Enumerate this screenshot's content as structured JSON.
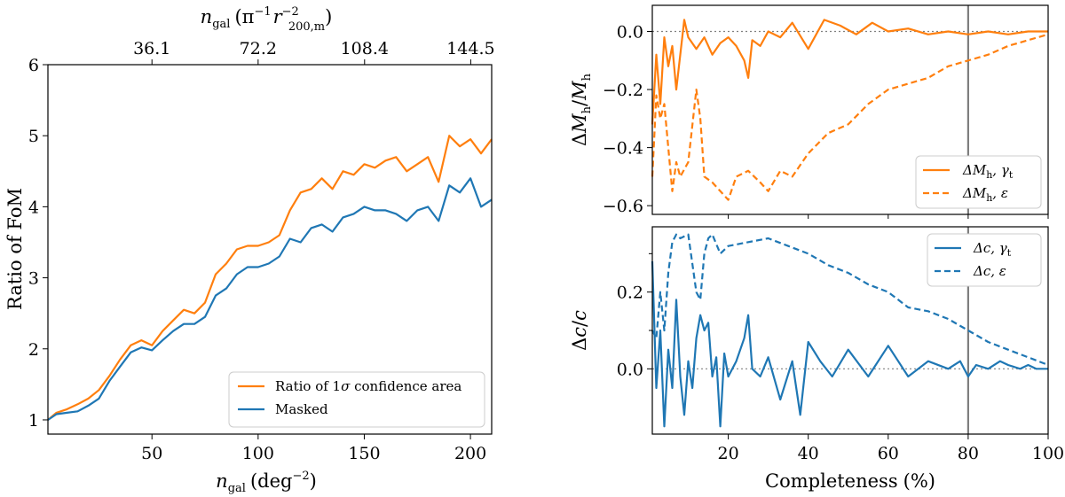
{
  "colors": {
    "orange": "#ff7f0e",
    "blue": "#1f77b4",
    "zero_line": "#808080",
    "vline": "#7f7f7f"
  },
  "chart_data": [
    {
      "type": "line",
      "xlabel": "n_gal (deg^-2)",
      "xlabel_main": "n",
      "xlabel_sub": "gal",
      "xlabel_units": "(deg",
      "xlabel_exp": "−2",
      "xlabel_close": ")",
      "ylabel": "Ratio of FoM",
      "xlim": [
        1,
        210
      ],
      "ylim": [
        0.8,
        6
      ],
      "xticks": [
        50,
        100,
        150,
        200
      ],
      "xtick_labels": [
        "50",
        "100",
        "150",
        "200"
      ],
      "yticks": [
        1,
        2,
        3,
        4,
        5,
        6
      ],
      "ytick_labels": [
        "1",
        "2",
        "3",
        "4",
        "5",
        "6"
      ],
      "top_axis": {
        "label": "n_gal (π^-1 r_200,m^-2)",
        "label_main": "n",
        "label_sub": "gal",
        "label_paren": "(π",
        "label_pi_exp": "−1",
        "label_r": "r",
        "label_r_exp": "−2",
        "label_r_sub": "200,m",
        "label_close": ")",
        "ticks": [
          36.1,
          72.2,
          108.4,
          144.5
        ],
        "tick_labels": [
          "36.1",
          "72.2",
          "108.4",
          "144.5"
        ]
      },
      "legend_position": "bottom-right",
      "series": [
        {
          "name": "Ratio of 1σ confidence area",
          "legend_label": "Ratio of 1σ confidence area",
          "legend_prefix": "Ratio of 1",
          "legend_sigma": "σ",
          "legend_suffix": " confidence area",
          "color": "orange",
          "x": [
            1,
            5,
            10,
            15,
            20,
            25,
            30,
            35,
            40,
            45,
            50,
            55,
            60,
            65,
            70,
            75,
            80,
            85,
            90,
            95,
            100,
            105,
            110,
            115,
            120,
            125,
            130,
            135,
            140,
            145,
            150,
            155,
            160,
            165,
            170,
            175,
            180,
            185,
            190,
            195,
            200,
            205,
            210
          ],
          "y": [
            1.0,
            1.1,
            1.15,
            1.22,
            1.3,
            1.42,
            1.62,
            1.85,
            2.05,
            2.12,
            2.05,
            2.25,
            2.4,
            2.55,
            2.5,
            2.65,
            3.05,
            3.2,
            3.4,
            3.45,
            3.45,
            3.5,
            3.6,
            3.95,
            4.2,
            4.25,
            4.4,
            4.25,
            4.5,
            4.45,
            4.6,
            4.55,
            4.65,
            4.7,
            4.5,
            4.6,
            4.7,
            4.35,
            5.0,
            4.85,
            4.95,
            4.75,
            4.95
          ]
        },
        {
          "name": "Masked",
          "legend_label": "Masked",
          "color": "blue",
          "x": [
            1,
            5,
            10,
            15,
            20,
            25,
            30,
            35,
            40,
            45,
            50,
            55,
            60,
            65,
            70,
            75,
            80,
            85,
            90,
            95,
            100,
            105,
            110,
            115,
            120,
            125,
            130,
            135,
            140,
            145,
            150,
            155,
            160,
            165,
            170,
            175,
            180,
            185,
            190,
            195,
            200,
            205,
            210
          ],
          "y": [
            1.0,
            1.08,
            1.1,
            1.12,
            1.2,
            1.3,
            1.55,
            1.75,
            1.95,
            2.02,
            1.98,
            2.12,
            2.25,
            2.35,
            2.35,
            2.45,
            2.75,
            2.85,
            3.05,
            3.15,
            3.15,
            3.2,
            3.3,
            3.55,
            3.5,
            3.7,
            3.75,
            3.65,
            3.85,
            3.9,
            4.0,
            3.95,
            3.95,
            3.9,
            3.8,
            3.95,
            4.0,
            3.8,
            4.3,
            4.2,
            4.4,
            4.0,
            4.1
          ]
        }
      ]
    },
    {
      "type": "line",
      "ylabel": "ΔM_h/M_h",
      "ylabel_parts": {
        "delta": "Δ",
        "m1": "M",
        "s1": "h",
        "slash": "/",
        "m2": "M",
        "s2": "h"
      },
      "xlim": [
        1,
        100
      ],
      "ylim": [
        -0.63,
        0.09
      ],
      "yticks": [
        0.0,
        -0.2,
        -0.4,
        -0.6
      ],
      "ytick_labels": [
        "0.0",
        "−0.2",
        "−0.4",
        "−0.6"
      ],
      "reference_line": 0.0,
      "vertical_line": 80,
      "legend_position": "bottom-right",
      "series": [
        {
          "name": "ΔM_h, γ_t",
          "legend_parts": {
            "main": "ΔM",
            "sub1": "h",
            "mid": ", γ",
            "sub2": "t"
          },
          "color": "orange",
          "style": "solid",
          "x": [
            1,
            2,
            3,
            4,
            5,
            6,
            7,
            8,
            9,
            10,
            12,
            14,
            16,
            18,
            20,
            22,
            24,
            25,
            26,
            28,
            30,
            33,
            36,
            40,
            44,
            48,
            52,
            56,
            60,
            65,
            70,
            75,
            80,
            85,
            90,
            95,
            100
          ],
          "y": [
            -0.32,
            -0.08,
            -0.25,
            -0.02,
            -0.12,
            -0.05,
            -0.2,
            -0.08,
            0.04,
            -0.02,
            -0.06,
            -0.02,
            -0.08,
            -0.04,
            -0.02,
            -0.05,
            -0.1,
            -0.16,
            -0.03,
            -0.05,
            0.0,
            -0.02,
            0.03,
            -0.06,
            0.04,
            0.02,
            -0.01,
            0.03,
            0.0,
            0.01,
            -0.01,
            0.0,
            -0.01,
            0.0,
            -0.01,
            0.0,
            0.0
          ]
        },
        {
          "name": "ΔM_h, ε",
          "legend_parts": {
            "main": "ΔM",
            "sub1": "h",
            "mid": ", ε"
          },
          "color": "orange",
          "style": "dashed",
          "x": [
            1,
            2,
            3,
            4,
            5,
            6,
            7,
            8,
            10,
            12,
            13,
            14,
            16,
            18,
            20,
            22,
            25,
            28,
            30,
            33,
            36,
            40,
            45,
            50,
            55,
            60,
            65,
            70,
            75,
            80,
            85,
            90,
            95,
            100
          ],
          "y": [
            -0.5,
            -0.22,
            -0.3,
            -0.25,
            -0.4,
            -0.55,
            -0.45,
            -0.5,
            -0.45,
            -0.2,
            -0.3,
            -0.5,
            -0.52,
            -0.55,
            -0.58,
            -0.5,
            -0.48,
            -0.52,
            -0.55,
            -0.48,
            -0.5,
            -0.42,
            -0.35,
            -0.32,
            -0.25,
            -0.2,
            -0.18,
            -0.16,
            -0.12,
            -0.1,
            -0.08,
            -0.05,
            -0.03,
            -0.01
          ]
        }
      ]
    },
    {
      "type": "line",
      "xlabel": "Completeness (%)",
      "xlabel_text": "Completeness",
      "xlabel_units": "(%)",
      "ylabel": "Δc/c",
      "ylabel_parts": {
        "delta": "Δ",
        "c1": "c",
        "slash": "/",
        "c2": "c"
      },
      "xlim": [
        1,
        100
      ],
      "ylim": [
        -0.17,
        0.37
      ],
      "xticks": [
        20,
        40,
        60,
        80,
        100
      ],
      "xtick_labels": [
        "20",
        "40",
        "60",
        "80",
        "100"
      ],
      "yticks": [
        0.0,
        0.1,
        0.2,
        0.3
      ],
      "ytick_labels": [
        "0.0",
        "",
        "0.2",
        ""
      ],
      "reference_line": 0.0,
      "vertical_line": 80,
      "legend_position": "top-right",
      "series": [
        {
          "name": "Δc, γ_t",
          "legend_parts": {
            "main": "Δc",
            "mid": ", γ",
            "sub": "t"
          },
          "color": "blue",
          "style": "solid",
          "x": [
            1,
            2,
            3,
            4,
            5,
            6,
            7,
            8,
            9,
            10,
            11,
            12,
            13,
            14,
            15,
            16,
            17,
            18,
            19,
            20,
            22,
            24,
            25,
            26,
            28,
            30,
            33,
            36,
            38,
            40,
            43,
            46,
            50,
            55,
            60,
            65,
            70,
            75,
            78,
            80,
            82,
            85,
            88,
            90,
            93,
            95,
            97,
            100
          ],
          "y": [
            0.28,
            -0.05,
            0.1,
            -0.15,
            0.05,
            -0.05,
            0.18,
            -0.02,
            -0.12,
            0.02,
            -0.05,
            0.08,
            0.14,
            0.1,
            0.12,
            -0.02,
            0.03,
            -0.15,
            0.04,
            -0.02,
            0.02,
            0.08,
            0.14,
            0.0,
            -0.02,
            0.03,
            -0.08,
            0.02,
            -0.12,
            0.07,
            0.02,
            -0.02,
            0.05,
            -0.02,
            0.06,
            -0.02,
            0.02,
            0.0,
            0.02,
            -0.02,
            0.01,
            0.0,
            0.02,
            0.01,
            0.0,
            0.01,
            0.0,
            0.0
          ]
        },
        {
          "name": "Δc, ε",
          "legend_parts": {
            "main": "Δc",
            "mid": ", ε"
          },
          "color": "blue",
          "style": "dashed",
          "x": [
            1,
            2,
            3,
            4,
            5,
            6,
            7,
            8,
            10,
            12,
            13,
            14,
            15,
            16,
            18,
            20,
            25,
            30,
            35,
            40,
            45,
            50,
            55,
            60,
            65,
            70,
            75,
            80,
            85,
            90,
            95,
            100
          ],
          "y": [
            0.1,
            0.08,
            0.2,
            0.1,
            0.25,
            0.33,
            0.35,
            0.34,
            0.35,
            0.2,
            0.18,
            0.3,
            0.34,
            0.35,
            0.3,
            0.32,
            0.33,
            0.34,
            0.32,
            0.3,
            0.27,
            0.25,
            0.22,
            0.2,
            0.16,
            0.15,
            0.13,
            0.1,
            0.07,
            0.05,
            0.03,
            0.01
          ]
        }
      ]
    }
  ]
}
